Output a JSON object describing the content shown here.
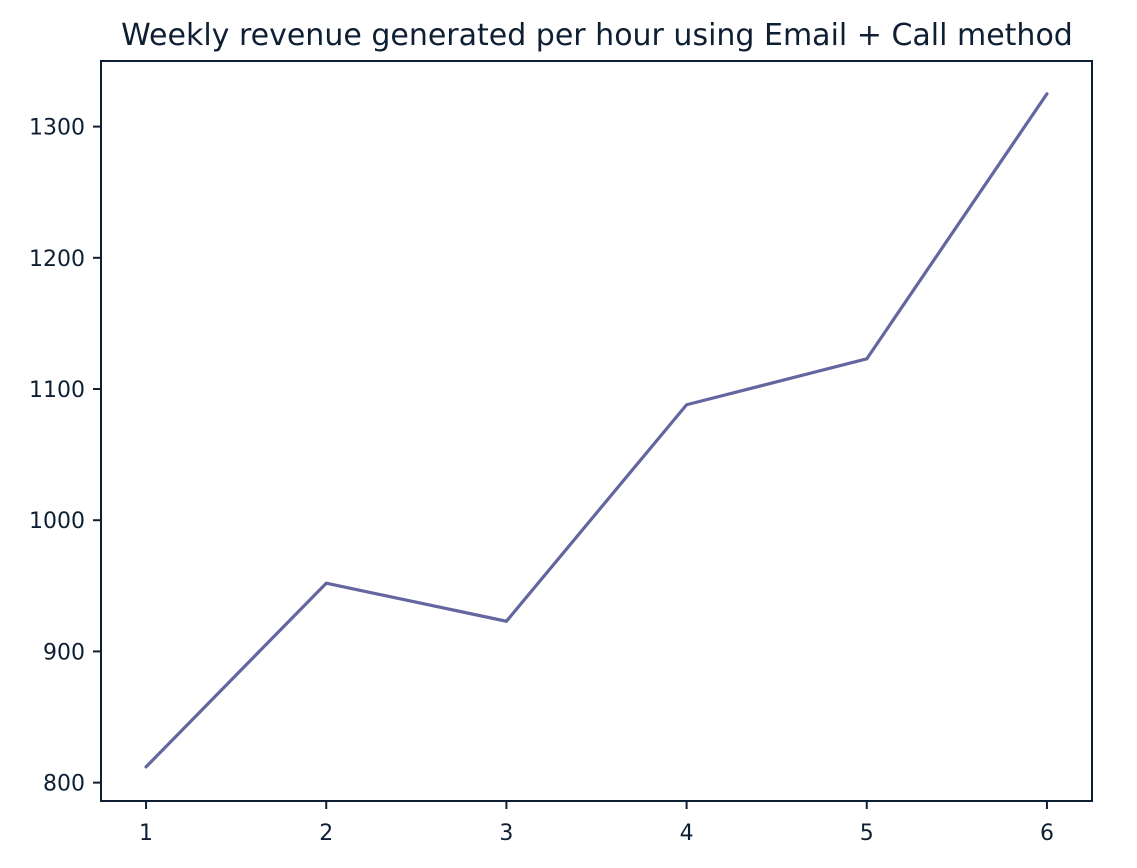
{
  "chart_data": {
    "type": "line",
    "title": "Weekly revenue generated per hour using Email + Call method",
    "xlabel": "",
    "ylabel": "",
    "x": [
      1,
      2,
      3,
      4,
      5,
      6
    ],
    "series": [
      {
        "values": [
          812,
          952,
          923,
          1088,
          1123,
          1325
        ]
      }
    ],
    "xlim": [
      0.75,
      6.25
    ],
    "ylim": [
      786,
      1350
    ],
    "x_ticks": [
      "1",
      "2",
      "3",
      "4",
      "5",
      "6"
    ],
    "y_ticks": [
      "800",
      "900",
      "1000",
      "1100",
      "1200",
      "1300"
    ],
    "grid": false,
    "legend": "none",
    "colors": {
      "line": "#6466a0",
      "axes": "#0f1f33",
      "text": "#0f1f33",
      "background": "#ffffff"
    }
  }
}
